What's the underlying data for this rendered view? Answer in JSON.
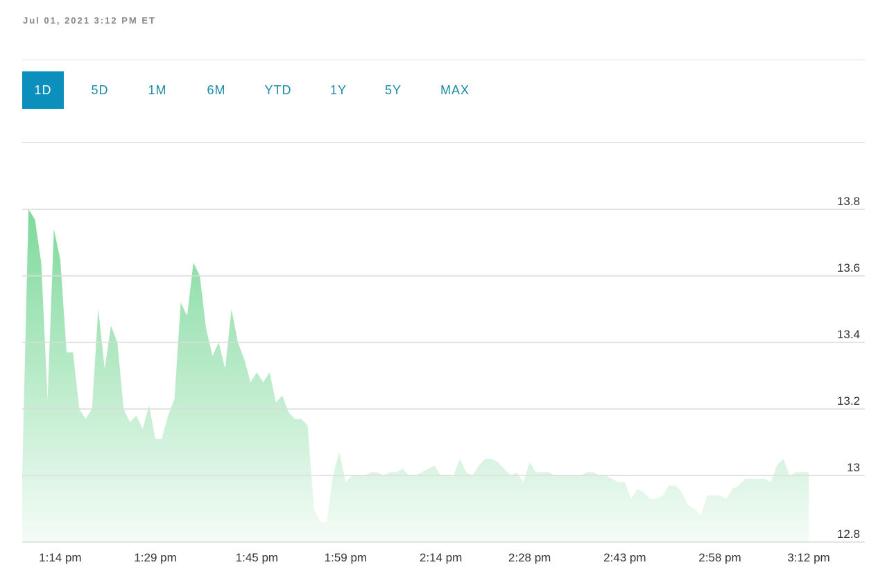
{
  "header": {
    "timestamp": "Jul 01, 2021 3:12 PM ET"
  },
  "ranges": {
    "items": [
      "1D",
      "5D",
      "1M",
      "6M",
      "YTD",
      "1Y",
      "5Y",
      "MAX"
    ],
    "selected_index": 0
  },
  "chart_data": {
    "type": "area",
    "categories": [
      null,
      null,
      null,
      null,
      null,
      null,
      "1:14 pm",
      null,
      null,
      null,
      null,
      null,
      null,
      null,
      null,
      null,
      null,
      null,
      null,
      null,
      null,
      "1:29 pm",
      null,
      null,
      null,
      null,
      null,
      null,
      null,
      null,
      null,
      null,
      null,
      null,
      null,
      null,
      null,
      "1:45 pm",
      null,
      null,
      null,
      null,
      null,
      null,
      null,
      null,
      null,
      null,
      null,
      null,
      null,
      "1:59 pm",
      null,
      null,
      null,
      null,
      null,
      null,
      null,
      null,
      null,
      null,
      null,
      null,
      null,
      null,
      "2:14 pm",
      null,
      null,
      null,
      null,
      null,
      null,
      null,
      null,
      null,
      null,
      null,
      null,
      null,
      "2:28 pm",
      null,
      null,
      null,
      null,
      null,
      null,
      null,
      null,
      null,
      null,
      null,
      null,
      null,
      null,
      "2:43 pm",
      null,
      null,
      null,
      null,
      null,
      null,
      null,
      null,
      null,
      null,
      null,
      null,
      null,
      null,
      "2:58 pm",
      null,
      null,
      null,
      null,
      null,
      null,
      null,
      null,
      null,
      null,
      null,
      null,
      null,
      "3:12 pm"
    ],
    "values": [
      13.0,
      13.8,
      13.77,
      13.64,
      13.23,
      13.74,
      13.65,
      13.37,
      13.37,
      13.2,
      13.17,
      13.2,
      13.5,
      13.32,
      13.45,
      13.4,
      13.2,
      13.16,
      13.18,
      13.14,
      13.21,
      13.11,
      13.11,
      13.18,
      13.23,
      13.52,
      13.48,
      13.64,
      13.6,
      13.44,
      13.36,
      13.4,
      13.32,
      13.5,
      13.4,
      13.35,
      13.28,
      13.31,
      13.28,
      13.31,
      13.22,
      13.24,
      13.19,
      13.17,
      13.17,
      13.15,
      12.9,
      12.86,
      12.86,
      13.0,
      13.07,
      12.98,
      13.0,
      13.0,
      13.0,
      13.01,
      13.01,
      13.0,
      13.01,
      13.01,
      13.02,
      13.0,
      13.0,
      13.01,
      13.02,
      13.03,
      13.0,
      13.0,
      13.0,
      13.05,
      13.01,
      13.0,
      13.03,
      13.05,
      13.05,
      13.04,
      13.02,
      13.0,
      13.01,
      12.98,
      13.04,
      13.01,
      13.01,
      13.01,
      13.0,
      13.0,
      13.0,
      13.0,
      13.0,
      13.01,
      13.01,
      13.0,
      13.0,
      12.99,
      12.98,
      12.98,
      12.93,
      12.96,
      12.95,
      12.93,
      12.93,
      12.94,
      12.97,
      12.97,
      12.95,
      12.91,
      12.9,
      12.88,
      12.94,
      12.94,
      12.94,
      12.93,
      12.96,
      12.97,
      12.99,
      12.99,
      12.99,
      12.99,
      12.98,
      13.03,
      13.05,
      13.0,
      13.01,
      13.01,
      13.01
    ],
    "color": "#7ed99b",
    "ylim": [
      12.8,
      13.8
    ],
    "yticks": [
      12.8,
      13,
      13.2,
      13.4,
      13.6,
      13.8
    ],
    "grid": true
  }
}
